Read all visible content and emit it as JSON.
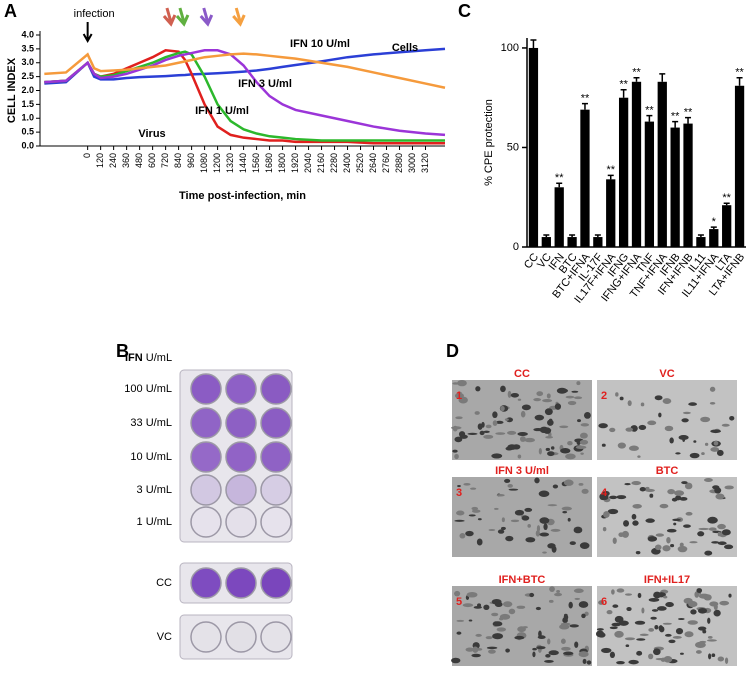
{
  "chart_data": [
    {
      "type": "line",
      "x_label": "Time post-infection, min",
      "y_label": "CELL INDEX",
      "annotation": "infection",
      "x": [
        -400,
        -200,
        0,
        60,
        120,
        240,
        360,
        480,
        600,
        720,
        840,
        900,
        960,
        1080,
        1200,
        1320,
        1440,
        1560,
        1680,
        1800,
        1920,
        2160,
        2400,
        2640,
        2880,
        3120,
        3300
      ],
      "series": [
        {
          "name": "Cells",
          "color": "#2b3fd6",
          "values": [
            2.25,
            2.3,
            3.0,
            2.5,
            2.4,
            2.4,
            2.45,
            2.48,
            2.5,
            2.52,
            2.55,
            2.56,
            2.58,
            2.6,
            2.62,
            2.65,
            2.68,
            2.72,
            2.78,
            2.85,
            2.92,
            3.05,
            3.2,
            3.3,
            3.38,
            3.45,
            3.5
          ]
        },
        {
          "name": "Virus",
          "color": "#e0201e",
          "values": [
            2.3,
            2.35,
            3.0,
            2.6,
            2.5,
            2.6,
            2.8,
            3.0,
            3.2,
            3.45,
            3.4,
            3.1,
            2.6,
            1.5,
            0.7,
            0.4,
            0.3,
            0.25,
            0.2,
            0.2,
            0.15,
            0.15,
            0.15,
            0.1,
            0.1,
            0.1,
            0.1
          ]
        },
        {
          "name": "IFN 1 U/ml",
          "color": "#2cb82c",
          "values": [
            2.3,
            2.35,
            3.0,
            2.6,
            2.5,
            2.55,
            2.7,
            2.85,
            3.0,
            3.2,
            3.35,
            3.4,
            3.3,
            2.5,
            1.5,
            0.9,
            0.6,
            0.45,
            0.35,
            0.3,
            0.25,
            0.2,
            0.2,
            0.2,
            0.2,
            0.2,
            0.2
          ]
        },
        {
          "name": "IFN 3 U/ml",
          "color": "#9b35d8",
          "values": [
            2.3,
            2.35,
            3.0,
            2.6,
            2.45,
            2.5,
            2.6,
            2.75,
            2.9,
            3.1,
            3.25,
            3.3,
            3.35,
            3.45,
            3.45,
            3.3,
            2.9,
            2.3,
            1.8,
            1.5,
            1.3,
            1.1,
            0.9,
            0.7,
            0.55,
            0.45,
            0.4
          ]
        },
        {
          "name": "IFN 10 U/ml",
          "color": "#f59a3c",
          "values": [
            2.6,
            2.65,
            3.3,
            2.8,
            2.7,
            2.72,
            2.75,
            2.8,
            2.85,
            2.9,
            3.0,
            3.05,
            3.1,
            3.2,
            3.25,
            3.3,
            3.33,
            3.3,
            3.25,
            3.2,
            3.15,
            3.0,
            2.85,
            2.65,
            2.45,
            2.25,
            2.1
          ]
        }
      ],
      "xlim": [
        -440,
        3300
      ],
      "xticks": [
        0,
        120,
        240,
        360,
        480,
        600,
        720,
        840,
        960,
        1080,
        1200,
        1320,
        1440,
        1560,
        1680,
        1800,
        1920,
        2040,
        2160,
        2280,
        2400,
        2520,
        2640,
        2760,
        2880,
        3000,
        3120
      ],
      "ylim": [
        0,
        4
      ],
      "yticks": [
        {
          "value": 0,
          "label": "0.0"
        },
        {
          "value": 0.5,
          "label": "0.5"
        },
        {
          "value": 1,
          "label": "1.0"
        },
        {
          "value": 1.5,
          "label": "1.5"
        },
        {
          "value": 2,
          "label": "2.0"
        },
        {
          "value": 2.5,
          "label": "2.5"
        },
        {
          "value": 3,
          "label": "3.0"
        },
        {
          "value": 3.5,
          "label": "3.5"
        },
        {
          "value": 4,
          "label": "4.0"
        }
      ]
    },
    {
      "type": "bar",
      "y_label": "% CPE protection",
      "categories": [
        "CC",
        "VC",
        "IFN",
        "BTC",
        "BTC+IFNA",
        "IL-17F",
        "IL17F+IFNA",
        "IFNG",
        "IFNG+IFNA",
        "TNF",
        "TNF+IFNA",
        "IFNB",
        "IFN+IFNB",
        "IL11",
        "IL11+IFNA",
        "LTA",
        "LTA+IFNB"
      ],
      "values": [
        100,
        5,
        30,
        5,
        69,
        5,
        34,
        75,
        83,
        63,
        83,
        60,
        62,
        5,
        9,
        21,
        81
      ],
      "errors": [
        4,
        1,
        2,
        1,
        3,
        1,
        2,
        4,
        2,
        3,
        4,
        3,
        3,
        1,
        1,
        1,
        4
      ],
      "annotations": [
        null,
        null,
        "**",
        null,
        "**",
        null,
        "**",
        "**",
        "**",
        "**",
        null,
        "**",
        "**",
        null,
        "*",
        "**",
        "**"
      ],
      "color": "#000000",
      "ylim": [
        0,
        105
      ],
      "yticks": [
        0,
        50,
        100
      ]
    }
  ],
  "panel_labels": [
    "A",
    "B",
    "C",
    "D"
  ],
  "plate": {
    "header_bold": "IFN",
    "header": "U/mL",
    "rows": [
      "100 U/mL",
      "33 U/mL",
      "10 U/mL",
      "3 U/mL",
      "1 U/mL",
      "CC",
      "VC"
    ]
  },
  "micrographs": [
    {
      "number": "1",
      "label": "CC"
    },
    {
      "number": "2",
      "label": "VC"
    },
    {
      "number": "3",
      "label": "IFN 3 U/ml"
    },
    {
      "number": "4",
      "label": "BTC"
    },
    {
      "number": "5",
      "label": "IFN+BTC"
    },
    {
      "number": "6",
      "label": "IFN+IL17"
    }
  ]
}
